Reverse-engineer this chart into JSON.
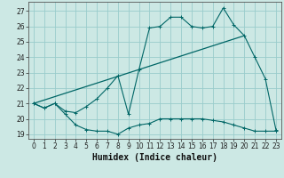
{
  "title": "",
  "xlabel": "Humidex (Indice chaleur)",
  "bg_color": "#cce8e4",
  "grid_color": "#99cccc",
  "line_color": "#006666",
  "xlim": [
    -0.5,
    23.5
  ],
  "ylim": [
    18.7,
    27.6
  ],
  "yticks": [
    19,
    20,
    21,
    22,
    23,
    24,
    25,
    26,
    27
  ],
  "xticks": [
    0,
    1,
    2,
    3,
    4,
    5,
    6,
    7,
    8,
    9,
    10,
    11,
    12,
    13,
    14,
    15,
    16,
    17,
    18,
    19,
    20,
    21,
    22,
    23
  ],
  "series1_x": [
    0,
    1,
    2,
    3,
    4,
    5,
    6,
    7,
    8,
    9,
    10,
    11,
    12,
    13,
    14,
    15,
    16,
    17,
    18,
    19,
    20,
    21,
    22,
    23
  ],
  "series1_y": [
    21.0,
    20.7,
    21.0,
    20.3,
    19.6,
    19.3,
    19.2,
    19.2,
    19.0,
    19.4,
    19.6,
    19.7,
    20.0,
    20.0,
    20.0,
    20.0,
    20.0,
    19.9,
    19.8,
    19.6,
    19.4,
    19.2,
    19.2,
    19.2
  ],
  "series2_x": [
    0,
    1,
    2,
    3,
    4,
    5,
    6,
    7,
    8,
    9,
    10,
    11,
    12,
    13,
    14,
    15,
    16,
    17,
    18,
    19,
    20,
    21,
    22,
    23
  ],
  "series2_y": [
    21.0,
    20.7,
    21.0,
    20.5,
    20.4,
    20.8,
    21.3,
    22.0,
    22.8,
    20.3,
    23.2,
    25.9,
    26.0,
    26.6,
    26.6,
    26.0,
    25.9,
    26.0,
    27.2,
    26.1,
    25.4,
    24.0,
    22.6,
    19.3
  ],
  "series3_x": [
    0,
    20
  ],
  "series3_y": [
    21.0,
    25.4
  ]
}
